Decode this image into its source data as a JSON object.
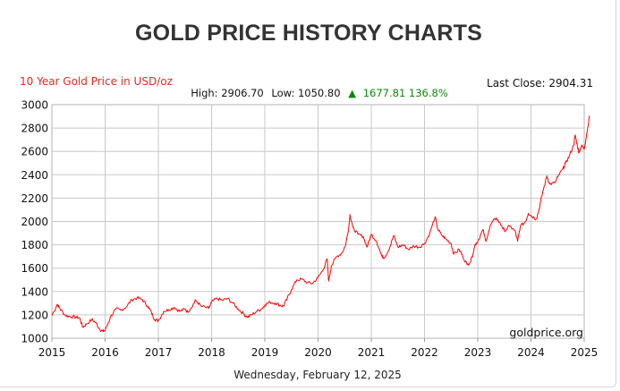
{
  "page": {
    "heading": "GOLD PRICE HISTORY CHARTS"
  },
  "chart_data": {
    "type": "line",
    "title": "10 Year Gold Price in USD/oz",
    "stats": {
      "high_label": "High: 2906.70",
      "low_label": "Low: 1050.80",
      "arrow": "▲",
      "change_label": "1677.81 136.8%"
    },
    "last_close_label": "Last Close: 2904.31",
    "watermark": "goldprice.org",
    "date_footer": "Wednesday, February 12, 2025",
    "xlim": [
      2015,
      2025
    ],
    "ylim": [
      1000,
      3000
    ],
    "x_ticks": [
      "2015",
      "2016",
      "2017",
      "2018",
      "2019",
      "2020",
      "2021",
      "2022",
      "2023",
      "2024",
      "2025"
    ],
    "y_ticks": [
      "3000",
      "2800",
      "2600",
      "2400",
      "2200",
      "2000",
      "1800",
      "1600",
      "1400",
      "1200",
      "1000"
    ],
    "grid": true,
    "line_color": "#ff0000",
    "series": [
      {
        "points": [
          [
            2015.0,
            1195
          ],
          [
            2015.1,
            1290
          ],
          [
            2015.15,
            1255
          ],
          [
            2015.25,
            1195
          ],
          [
            2015.35,
            1185
          ],
          [
            2015.45,
            1180
          ],
          [
            2015.52,
            1175
          ],
          [
            2015.58,
            1095
          ],
          [
            2015.65,
            1120
          ],
          [
            2015.75,
            1160
          ],
          [
            2015.82,
            1135
          ],
          [
            2015.9,
            1075
          ],
          [
            2015.96,
            1060
          ],
          [
            2016.0,
            1065
          ],
          [
            2016.1,
            1180
          ],
          [
            2016.2,
            1250
          ],
          [
            2016.3,
            1240
          ],
          [
            2016.4,
            1270
          ],
          [
            2016.5,
            1330
          ],
          [
            2016.6,
            1345
          ],
          [
            2016.7,
            1330
          ],
          [
            2016.8,
            1275
          ],
          [
            2016.87,
            1220
          ],
          [
            2016.93,
            1160
          ],
          [
            2017.0,
            1150
          ],
          [
            2017.1,
            1230
          ],
          [
            2017.2,
            1245
          ],
          [
            2017.3,
            1265
          ],
          [
            2017.4,
            1230
          ],
          [
            2017.5,
            1250
          ],
          [
            2017.55,
            1225
          ],
          [
            2017.65,
            1285
          ],
          [
            2017.7,
            1325
          ],
          [
            2017.8,
            1275
          ],
          [
            2017.95,
            1255
          ],
          [
            2018.0,
            1310
          ],
          [
            2018.1,
            1340
          ],
          [
            2018.2,
            1325
          ],
          [
            2018.3,
            1340
          ],
          [
            2018.4,
            1300
          ],
          [
            2018.5,
            1250
          ],
          [
            2018.6,
            1210
          ],
          [
            2018.67,
            1180
          ],
          [
            2018.75,
            1200
          ],
          [
            2018.85,
            1230
          ],
          [
            2018.95,
            1255
          ],
          [
            2019.0,
            1285
          ],
          [
            2019.1,
            1310
          ],
          [
            2019.2,
            1300
          ],
          [
            2019.3,
            1280
          ],
          [
            2019.35,
            1275
          ],
          [
            2019.42,
            1340
          ],
          [
            2019.5,
            1415
          ],
          [
            2019.6,
            1500
          ],
          [
            2019.7,
            1505
          ],
          [
            2019.8,
            1475
          ],
          [
            2019.9,
            1470
          ],
          [
            2020.0,
            1520
          ],
          [
            2020.1,
            1590
          ],
          [
            2020.17,
            1680
          ],
          [
            2020.2,
            1490
          ],
          [
            2020.25,
            1620
          ],
          [
            2020.35,
            1700
          ],
          [
            2020.45,
            1730
          ],
          [
            2020.52,
            1800
          ],
          [
            2020.58,
            1960
          ],
          [
            2020.6,
            2060
          ],
          [
            2020.65,
            1950
          ],
          [
            2020.75,
            1890
          ],
          [
            2020.85,
            1870
          ],
          [
            2020.92,
            1780
          ],
          [
            2021.0,
            1890
          ],
          [
            2021.1,
            1830
          ],
          [
            2021.2,
            1700
          ],
          [
            2021.25,
            1690
          ],
          [
            2021.35,
            1780
          ],
          [
            2021.42,
            1880
          ],
          [
            2021.5,
            1780
          ],
          [
            2021.6,
            1800
          ],
          [
            2021.7,
            1760
          ],
          [
            2021.8,
            1790
          ],
          [
            2021.9,
            1780
          ],
          [
            2022.0,
            1810
          ],
          [
            2022.1,
            1900
          ],
          [
            2022.2,
            2040
          ],
          [
            2022.25,
            1930
          ],
          [
            2022.33,
            1880
          ],
          [
            2022.4,
            1850
          ],
          [
            2022.5,
            1810
          ],
          [
            2022.55,
            1720
          ],
          [
            2022.65,
            1760
          ],
          [
            2022.72,
            1700
          ],
          [
            2022.8,
            1630
          ],
          [
            2022.87,
            1660
          ],
          [
            2022.95,
            1800
          ],
          [
            2023.0,
            1830
          ],
          [
            2023.1,
            1930
          ],
          [
            2023.15,
            1830
          ],
          [
            2023.25,
            1980
          ],
          [
            2023.35,
            2030
          ],
          [
            2023.45,
            1960
          ],
          [
            2023.5,
            1920
          ],
          [
            2023.6,
            1960
          ],
          [
            2023.7,
            1920
          ],
          [
            2023.75,
            1830
          ],
          [
            2023.8,
            1960
          ],
          [
            2023.9,
            2000
          ],
          [
            2023.95,
            2070
          ],
          [
            2024.0,
            2050
          ],
          [
            2024.1,
            2020
          ],
          [
            2024.15,
            2100
          ],
          [
            2024.22,
            2250
          ],
          [
            2024.3,
            2390
          ],
          [
            2024.35,
            2320
          ],
          [
            2024.45,
            2330
          ],
          [
            2024.5,
            2380
          ],
          [
            2024.6,
            2450
          ],
          [
            2024.65,
            2500
          ],
          [
            2024.72,
            2560
          ],
          [
            2024.8,
            2650
          ],
          [
            2024.83,
            2740
          ],
          [
            2024.87,
            2650
          ],
          [
            2024.9,
            2590
          ],
          [
            2024.95,
            2650
          ],
          [
            2025.0,
            2620
          ],
          [
            2025.05,
            2760
          ],
          [
            2025.1,
            2905
          ]
        ]
      }
    ]
  }
}
